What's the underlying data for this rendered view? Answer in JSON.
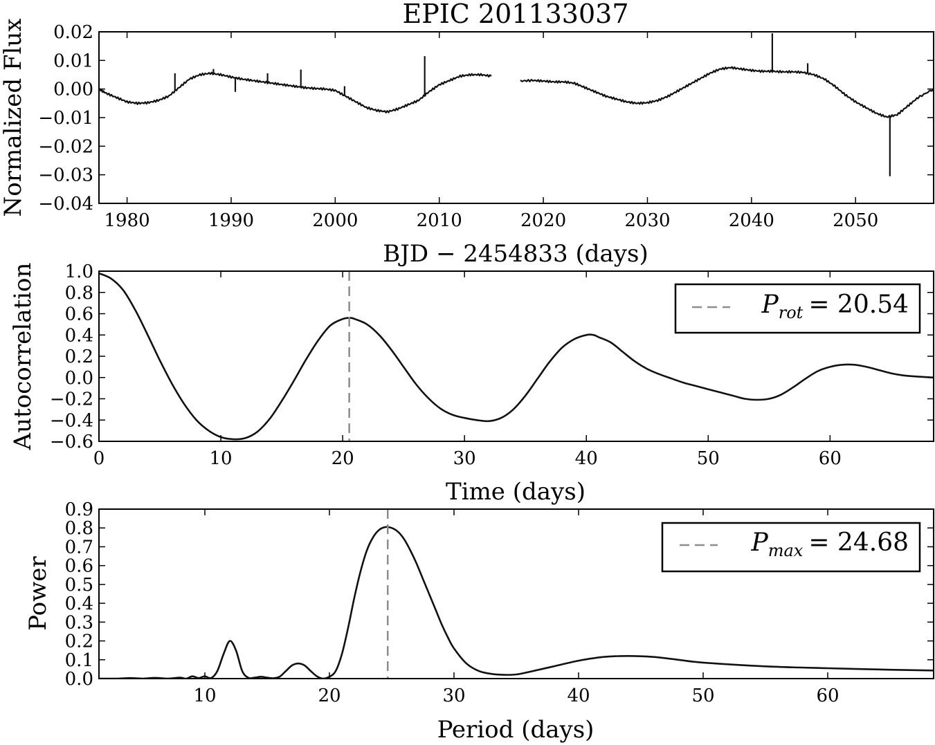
{
  "chart_data": [
    {
      "type": "line",
      "title": "EPIC 201133037",
      "xlabel": "BJD − 2454833 (days)",
      "ylabel": "Normalized Flux",
      "xlim": [
        1977.3,
        2057.5
      ],
      "ylim": [
        -0.04,
        0.02
      ],
      "xticks": [
        1980,
        1990,
        2000,
        2010,
        2020,
        2030,
        2040,
        2050
      ],
      "xtick_labels": [
        "1980",
        "1990",
        "2000",
        "2010",
        "2020",
        "2030",
        "2040",
        "2050"
      ],
      "yticks": [
        0.02,
        0.01,
        0.0,
        -0.01,
        -0.02,
        -0.03,
        -0.04
      ],
      "ytick_labels": [
        "0.02",
        "0.01",
        "0.00",
        "−0.01",
        "−0.02",
        "−0.03",
        "−0.04"
      ],
      "grid": false,
      "segments": [
        {
          "x": [
            1977.3,
            1978,
            1979,
            1980,
            1981,
            1982,
            1983,
            1984,
            1985,
            1986,
            1987,
            1988,
            1989,
            1990,
            1991,
            1992,
            1993,
            1994,
            1995,
            1996,
            1997,
            1998,
            1999,
            2000,
            2001,
            2002,
            2003,
            2004,
            2005,
            2006,
            2007,
            2008,
            2009,
            2010,
            2011,
            2012,
            2013,
            2014,
            2015
          ],
          "y": [
            0.0,
            -0.0015,
            -0.003,
            -0.0045,
            -0.005,
            -0.0048,
            -0.004,
            -0.0025,
            0.0005,
            0.0035,
            0.005,
            0.0055,
            0.005,
            0.0042,
            0.0035,
            0.003,
            0.0025,
            0.002,
            0.0015,
            0.001,
            0.0005,
            0.0002,
            0.0,
            -0.0005,
            -0.0025,
            -0.0045,
            -0.0065,
            -0.0075,
            -0.008,
            -0.007,
            -0.0055,
            -0.004,
            -0.001,
            0.0015,
            0.003,
            0.0045,
            0.005,
            0.005,
            0.0045
          ]
        },
        {
          "x": [
            2017.8,
            2019,
            2020,
            2021,
            2022,
            2023,
            2024,
            2025,
            2026,
            2027,
            2028,
            2029,
            2030,
            2031,
            2032,
            2033,
            2034,
            2035,
            2036,
            2037,
            2038,
            2039,
            2040,
            2041,
            2042,
            2043,
            2044,
            2045,
            2046,
            2047,
            2048,
            2049,
            2050,
            2051,
            2052,
            2053,
            2054,
            2055,
            2056,
            2057.5
          ],
          "y": [
            0.0028,
            0.003,
            0.0028,
            0.0025,
            0.0025,
            0.002,
            0.0005,
            -0.001,
            -0.0025,
            -0.0035,
            -0.0045,
            -0.005,
            -0.0048,
            -0.004,
            -0.0025,
            -0.0005,
            0.0015,
            0.0035,
            0.0055,
            0.007,
            0.0075,
            0.007,
            0.0065,
            0.0062,
            0.0062,
            0.006,
            0.006,
            0.0058,
            0.005,
            0.0035,
            0.001,
            -0.002,
            -0.0045,
            -0.0065,
            -0.0085,
            -0.0098,
            -0.009,
            -0.006,
            -0.003,
            0.0
          ]
        }
      ],
      "spikes": [
        {
          "x": 1984.6,
          "y": 0.0055
        },
        {
          "x": 1988.3,
          "y": 0.007
        },
        {
          "x": 1990.4,
          "y": -0.001
        },
        {
          "x": 1993.5,
          "y": 0.0055
        },
        {
          "x": 1996.7,
          "y": 0.0068
        },
        {
          "x": 2000.9,
          "y": 0.001
        },
        {
          "x": 2008.6,
          "y": 0.0115
        },
        {
          "x": 2042.0,
          "y": 0.0195
        },
        {
          "x": 2045.4,
          "y": 0.009
        },
        {
          "x": 2053.3,
          "y": -0.0305
        }
      ]
    },
    {
      "type": "line",
      "xlabel": "Time (days)",
      "ylabel": "Autocorrelation",
      "xlim": [
        0,
        68.5
      ],
      "ylim": [
        -0.6,
        1.0
      ],
      "xticks": [
        0,
        10,
        20,
        30,
        40,
        50,
        60
      ],
      "xtick_labels": [
        "0",
        "10",
        "20",
        "30",
        "40",
        "50",
        "60"
      ],
      "yticks": [
        1.0,
        0.8,
        0.6,
        0.4,
        0.2,
        0.0,
        -0.2,
        -0.4,
        -0.6
      ],
      "ytick_labels": [
        "1.0",
        "0.8",
        "0.6",
        "0.4",
        "0.2",
        "0.0",
        "−0.2",
        "−0.4",
        "−0.6"
      ],
      "grid": false,
      "legend_placement": "top-right",
      "legend": {
        "symbol": "P",
        "subscript": "rot",
        "value_text": "= 20.54"
      },
      "marker_x": 20.54,
      "x": [
        0,
        1,
        2,
        3,
        4,
        5,
        6,
        7,
        8,
        9,
        10,
        11,
        12,
        13,
        14,
        15,
        16,
        17,
        18,
        19,
        20,
        20.6,
        21,
        22,
        23,
        24,
        25,
        26,
        27,
        28,
        29,
        30,
        31,
        32,
        33,
        34,
        35,
        36,
        37,
        38,
        39,
        40,
        40.6,
        41,
        42,
        43,
        44,
        45,
        46,
        47,
        48,
        49,
        50,
        51,
        52,
        53,
        54,
        55,
        56,
        57,
        58,
        59,
        60,
        61,
        62,
        63,
        64,
        65,
        66,
        67,
        68.5
      ],
      "y": [
        0.98,
        0.93,
        0.82,
        0.63,
        0.4,
        0.16,
        -0.06,
        -0.25,
        -0.4,
        -0.5,
        -0.56,
        -0.58,
        -0.57,
        -0.51,
        -0.39,
        -0.22,
        -0.03,
        0.17,
        0.35,
        0.49,
        0.55,
        0.56,
        0.55,
        0.5,
        0.4,
        0.26,
        0.1,
        -0.06,
        -0.19,
        -0.29,
        -0.35,
        -0.38,
        -0.4,
        -0.41,
        -0.38,
        -0.3,
        -0.17,
        -0.01,
        0.15,
        0.28,
        0.36,
        0.4,
        0.4,
        0.38,
        0.33,
        0.24,
        0.15,
        0.08,
        0.03,
        -0.01,
        -0.05,
        -0.08,
        -0.11,
        -0.14,
        -0.17,
        -0.2,
        -0.21,
        -0.2,
        -0.16,
        -0.09,
        -0.01,
        0.06,
        0.1,
        0.12,
        0.12,
        0.1,
        0.07,
        0.04,
        0.02,
        0.01,
        0.0
      ]
    },
    {
      "type": "line",
      "xlabel": "Period (days)",
      "ylabel": "Power",
      "xlim": [
        1.5,
        68.5
      ],
      "ylim": [
        0.0,
        0.9
      ],
      "xticks": [
        10,
        20,
        30,
        40,
        50,
        60
      ],
      "xtick_labels": [
        "10",
        "20",
        "30",
        "40",
        "50",
        "60"
      ],
      "yticks": [
        0.9,
        0.8,
        0.7,
        0.6,
        0.5,
        0.4,
        0.3,
        0.2,
        0.1,
        0.0
      ],
      "ytick_labels": [
        "0.9",
        "0.8",
        "0.7",
        "0.6",
        "0.5",
        "0.4",
        "0.3",
        "0.2",
        "0.1",
        "0.0"
      ],
      "grid": false,
      "legend_placement": "top-right",
      "legend": {
        "symbol": "P",
        "subscript": "max",
        "value_text": "= 24.68"
      },
      "marker_x": 24.68,
      "x": [
        1.5,
        3,
        4,
        5,
        6,
        7,
        8,
        8.5,
        9,
        9.5,
        10,
        10.5,
        11,
        11.5,
        12,
        12.5,
        13,
        13.5,
        14,
        14.5,
        15,
        15.5,
        16,
        16.5,
        17,
        17.5,
        18,
        18.5,
        19,
        19.5,
        20,
        20.5,
        21,
        21.5,
        22,
        22.5,
        23,
        23.5,
        24,
        24.5,
        25,
        25.5,
        26,
        26.5,
        27,
        27.5,
        28,
        28.5,
        29,
        29.5,
        30,
        31,
        32,
        33,
        34,
        35,
        36,
        38,
        40,
        42,
        44,
        46,
        48,
        50,
        55,
        60,
        65,
        68.5
      ],
      "y": [
        0.0,
        0.0,
        0.003,
        0.0,
        0.004,
        0.0,
        0.005,
        0.0,
        0.012,
        0.003,
        0.012,
        0.003,
        0.04,
        0.13,
        0.2,
        0.15,
        0.04,
        0.004,
        0.005,
        0.01,
        0.005,
        0.002,
        0.01,
        0.04,
        0.07,
        0.08,
        0.07,
        0.04,
        0.012,
        0.0,
        0.01,
        0.04,
        0.13,
        0.27,
        0.43,
        0.57,
        0.68,
        0.75,
        0.79,
        0.805,
        0.8,
        0.78,
        0.74,
        0.68,
        0.61,
        0.53,
        0.45,
        0.37,
        0.29,
        0.22,
        0.16,
        0.08,
        0.04,
        0.025,
        0.02,
        0.022,
        0.035,
        0.065,
        0.095,
        0.115,
        0.12,
        0.115,
        0.1,
        0.085,
        0.065,
        0.055,
        0.047,
        0.043
      ]
    }
  ]
}
